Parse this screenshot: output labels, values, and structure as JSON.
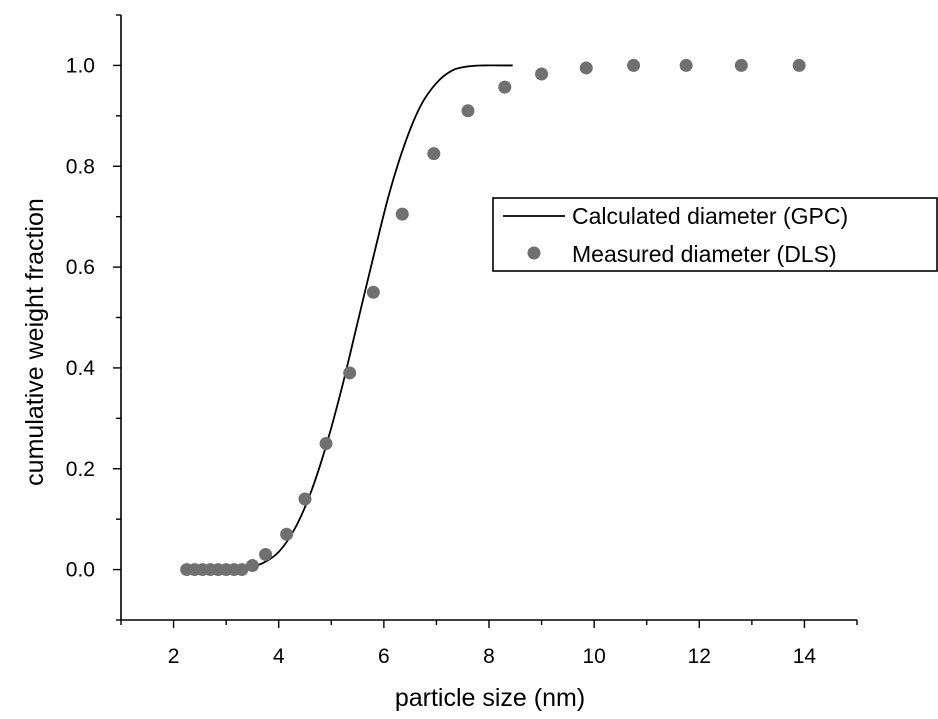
{
  "chart_data": {
    "type": "scatter",
    "title": "",
    "xlabel": "particle size (nm)",
    "ylabel": "cumulative weight fraction",
    "xlim": [
      1,
      15
    ],
    "ylim": [
      -0.1,
      1.1
    ],
    "x_ticks": [
      2,
      4,
      6,
      8,
      10,
      12,
      14
    ],
    "x_tick_labels": [
      "2",
      "4",
      "6",
      "8",
      "10",
      "12",
      "14"
    ],
    "y_ticks": [
      0.0,
      0.2,
      0.4,
      0.6,
      0.8,
      1.0
    ],
    "y_tick_labels": [
      "0.0",
      "0.2",
      "0.4",
      "0.6",
      "0.8",
      "1.0"
    ],
    "grid": false,
    "legend_position": "right",
    "series": [
      {
        "name": "Calculated diameter (GPC)",
        "type": "line",
        "color": "#000000",
        "x": [
          2.2,
          2.6,
          3.0,
          3.4,
          3.7,
          4.0,
          4.3,
          4.6,
          4.9,
          5.2,
          5.5,
          5.8,
          6.1,
          6.4,
          6.7,
          7.0,
          7.3,
          7.6,
          7.9,
          8.2,
          8.45
        ],
        "y": [
          0.0,
          0.0,
          0.001,
          0.004,
          0.013,
          0.035,
          0.08,
          0.15,
          0.245,
          0.36,
          0.49,
          0.62,
          0.745,
          0.845,
          0.92,
          0.965,
          0.99,
          0.998,
          1.0,
          1.0,
          1.0
        ]
      },
      {
        "name": "Measured diameter (DLS)",
        "type": "scatter",
        "color": "#707070",
        "x": [
          2.25,
          2.4,
          2.55,
          2.7,
          2.85,
          3.0,
          3.15,
          3.3,
          3.5,
          3.75,
          4.15,
          4.5,
          4.9,
          5.35,
          5.8,
          6.35,
          6.95,
          7.6,
          8.3,
          9.0,
          9.85,
          10.75,
          11.75,
          12.8,
          13.9
        ],
        "y": [
          0.0,
          0.0,
          0.0,
          0.0,
          0.0,
          0.0,
          0.0,
          0.0,
          0.008,
          0.03,
          0.07,
          0.14,
          0.25,
          0.39,
          0.55,
          0.705,
          0.825,
          0.91,
          0.957,
          0.983,
          0.995,
          1.0,
          1.0,
          1.0,
          1.0
        ]
      }
    ]
  }
}
